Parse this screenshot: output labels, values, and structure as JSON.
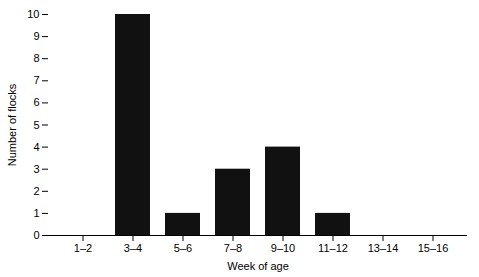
{
  "chart_data": {
    "type": "bar",
    "categories": [
      "1–2",
      "3–4",
      "5–6",
      "7–8",
      "9–10",
      "11–12",
      "13–14",
      "15–16"
    ],
    "values": [
      0,
      10,
      1,
      3,
      4,
      1,
      0,
      0
    ],
    "color": "#111111",
    "xlabel": "Week of age",
    "ylabel": "Number of flocks",
    "ylim": [
      0,
      10
    ],
    "yticks": [
      0,
      1,
      2,
      3,
      4,
      5,
      6,
      7,
      8,
      9,
      10
    ],
    "grid": false
  }
}
